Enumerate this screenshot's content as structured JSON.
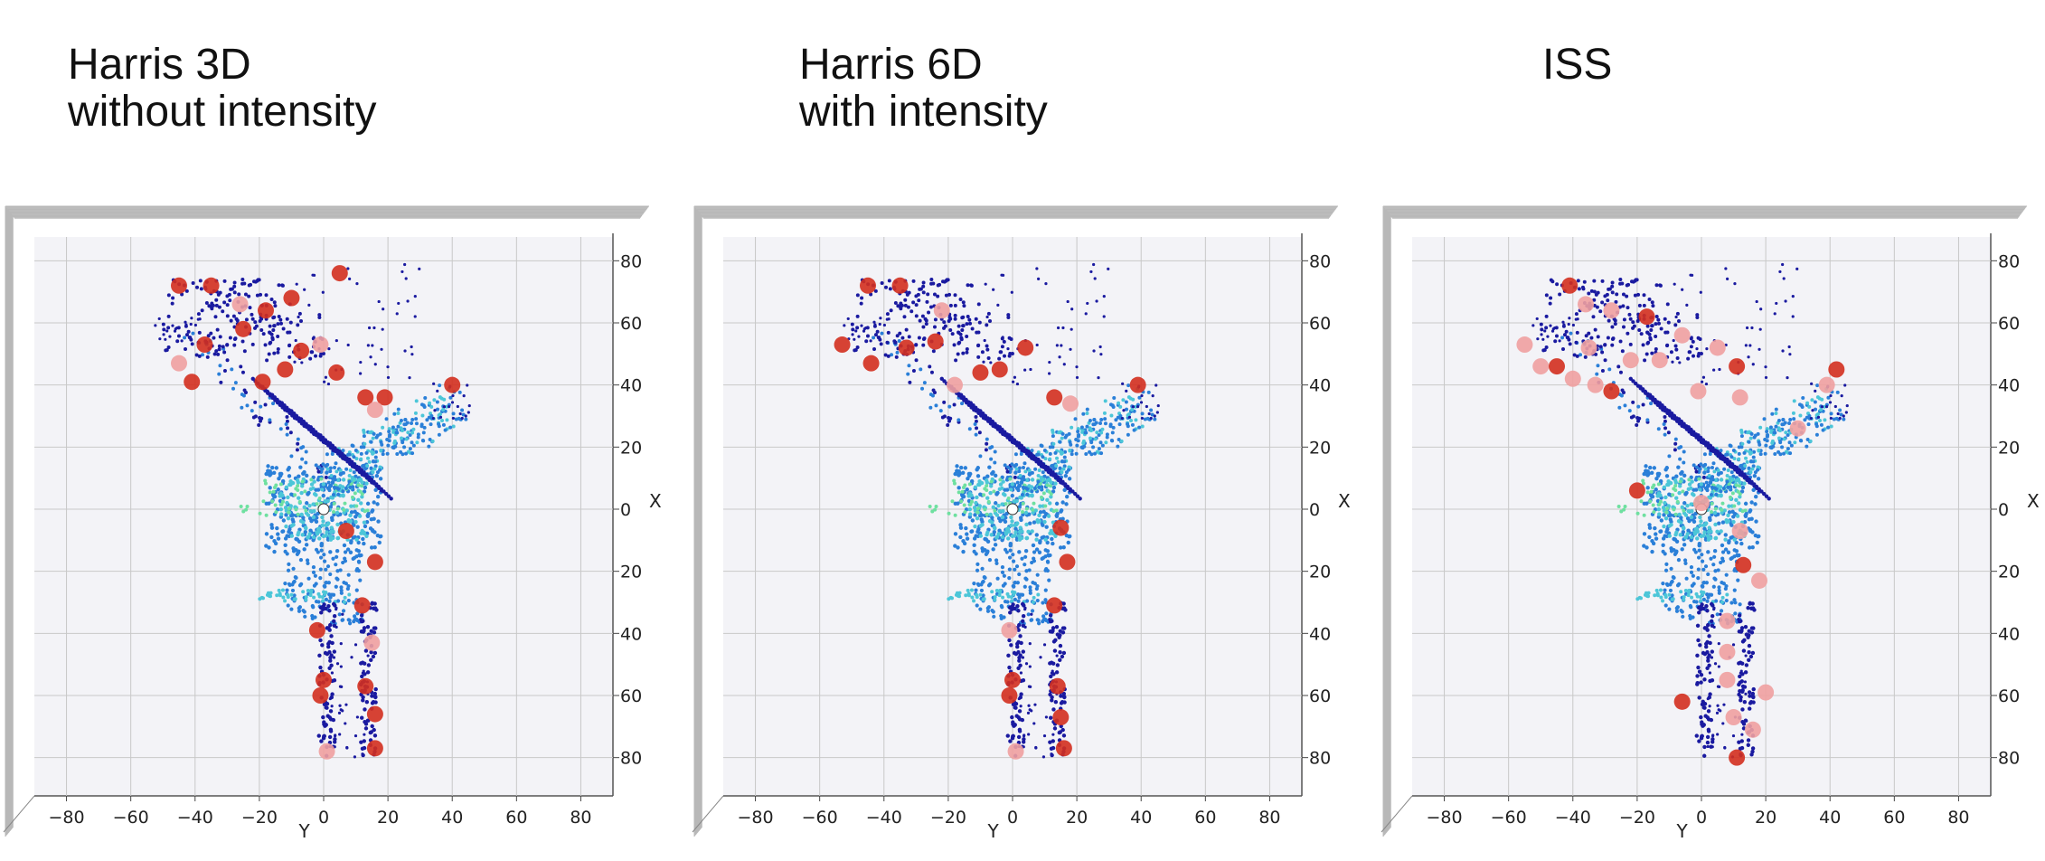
{
  "chart_data": [
    {
      "type": "scatter",
      "title": "Harris 3D\nwithout intensity",
      "title_lines": [
        "Harris 3D",
        "without intensity"
      ],
      "xlabel": "Y",
      "ylabel": "X",
      "xticks": [
        "−80",
        "−60",
        "−40",
        "−20",
        "0",
        "20",
        "40",
        "60",
        "80"
      ],
      "yticks": [
        "80",
        "60",
        "40",
        "20",
        "0",
        "20",
        "40",
        "60",
        "80"
      ],
      "xlim": [
        -90,
        90
      ],
      "ylim": [
        -90,
        90
      ],
      "grid": true,
      "keypoints": [
        {
          "y": -45,
          "x": 72
        },
        {
          "y": -35,
          "x": 72
        },
        {
          "y": -26,
          "x": 66
        },
        {
          "y": -18,
          "x": 64
        },
        {
          "y": -10,
          "x": 68
        },
        {
          "y": -37,
          "x": 53
        },
        {
          "y": -25,
          "x": 58
        },
        {
          "y": -45,
          "x": 47
        },
        {
          "y": -41,
          "x": 41
        },
        {
          "y": -19,
          "x": 41
        },
        {
          "y": -12,
          "x": 45
        },
        {
          "y": -7,
          "x": 51
        },
        {
          "y": -1,
          "x": 53
        },
        {
          "y": 4,
          "x": 44
        },
        {
          "y": 13,
          "x": 36
        },
        {
          "y": 19,
          "x": 36
        },
        {
          "y": 40,
          "x": 40
        },
        {
          "y": 16,
          "x": 32
        },
        {
          "y": 7,
          "x": -7
        },
        {
          "y": 16,
          "x": -17
        },
        {
          "y": 12,
          "x": -31
        },
        {
          "y": -2,
          "x": -39
        },
        {
          "y": 15,
          "x": -43
        },
        {
          "y": 0,
          "x": -55
        },
        {
          "y": -1,
          "x": -60
        },
        {
          "y": 13,
          "x": -57
        },
        {
          "y": 16,
          "x": -66
        },
        {
          "y": 1,
          "x": -78
        },
        {
          "y": 16,
          "x": -77
        },
        {
          "y": 5,
          "x": 76
        }
      ]
    },
    {
      "type": "scatter",
      "title": "Harris 6D\nwith intensity",
      "title_lines": [
        "Harris 6D",
        "with intensity"
      ],
      "xlabel": "Y",
      "ylabel": "X",
      "xticks": [
        "−80",
        "−60",
        "−40",
        "−20",
        "0",
        "20",
        "40",
        "60",
        "80"
      ],
      "yticks": [
        "80",
        "60",
        "40",
        "20",
        "0",
        "20",
        "40",
        "60",
        "80"
      ],
      "xlim": [
        -90,
        90
      ],
      "ylim": [
        -90,
        90
      ],
      "grid": true,
      "keypoints": [
        {
          "y": -45,
          "x": 72
        },
        {
          "y": -35,
          "x": 72
        },
        {
          "y": -22,
          "x": 64
        },
        {
          "y": -53,
          "x": 53
        },
        {
          "y": -44,
          "x": 47
        },
        {
          "y": -33,
          "x": 52
        },
        {
          "y": -24,
          "x": 54
        },
        {
          "y": -18,
          "x": 40
        },
        {
          "y": -10,
          "x": 44
        },
        {
          "y": -4,
          "x": 45
        },
        {
          "y": 4,
          "x": 52
        },
        {
          "y": 13,
          "x": 36
        },
        {
          "y": 18,
          "x": 34
        },
        {
          "y": 39,
          "x": 40
        },
        {
          "y": 15,
          "x": -6
        },
        {
          "y": 17,
          "x": -17
        },
        {
          "y": 13,
          "x": -31
        },
        {
          "y": -1,
          "x": -39
        },
        {
          "y": 0,
          "x": -55
        },
        {
          "y": -1,
          "x": -60
        },
        {
          "y": 14,
          "x": -57
        },
        {
          "y": 15,
          "x": -67
        },
        {
          "y": 1,
          "x": -78
        },
        {
          "y": 16,
          "x": -77
        }
      ]
    },
    {
      "type": "scatter",
      "title": "ISS",
      "title_lines": [
        "ISS"
      ],
      "xlabel": "Y",
      "ylabel": "X",
      "xticks": [
        "−80",
        "−60",
        "−40",
        "−20",
        "0",
        "20",
        "40",
        "60",
        "80"
      ],
      "yticks": [
        "80",
        "60",
        "40",
        "20",
        "0",
        "20",
        "40",
        "60",
        "80"
      ],
      "xlim": [
        -90,
        90
      ],
      "ylim": [
        -90,
        90
      ],
      "grid": true,
      "keypoints": [
        {
          "y": -41,
          "x": 72
        },
        {
          "y": -36,
          "x": 66
        },
        {
          "y": -28,
          "x": 64
        },
        {
          "y": -17,
          "x": 62
        },
        {
          "y": -55,
          "x": 53
        },
        {
          "y": -50,
          "x": 46
        },
        {
          "y": -45,
          "x": 46
        },
        {
          "y": -40,
          "x": 42
        },
        {
          "y": -33,
          "x": 40
        },
        {
          "y": -28,
          "x": 38
        },
        {
          "y": -35,
          "x": 52
        },
        {
          "y": -22,
          "x": 48
        },
        {
          "y": -13,
          "x": 48
        },
        {
          "y": -6,
          "x": 56
        },
        {
          "y": 5,
          "x": 52
        },
        {
          "y": 11,
          "x": 46
        },
        {
          "y": -1,
          "x": 38
        },
        {
          "y": 12,
          "x": 36
        },
        {
          "y": 42,
          "x": 45
        },
        {
          "y": 39,
          "x": 40
        },
        {
          "y": 30,
          "x": 26
        },
        {
          "y": -20,
          "x": 6
        },
        {
          "y": 0,
          "x": 2
        },
        {
          "y": 12,
          "x": -7
        },
        {
          "y": 13,
          "x": -18
        },
        {
          "y": 18,
          "x": -23
        },
        {
          "y": 8,
          "x": -36
        },
        {
          "y": 8,
          "x": -46
        },
        {
          "y": 8,
          "x": -55
        },
        {
          "y": 20,
          "x": -59
        },
        {
          "y": -6,
          "x": -62
        },
        {
          "y": 10,
          "x": -67
        },
        {
          "y": 16,
          "x": -71
        },
        {
          "y": 11,
          "x": -80
        }
      ]
    }
  ],
  "colors": {
    "pane": "#f3f3f7",
    "grid": "#c8c8c8",
    "keypoint_dark": "#d32f1e",
    "keypoint_light": "#f0a0a0",
    "cloud_dark": "#1a1aa0",
    "cloud_mid": "#2a7fd8",
    "cloud_light": "#4cc6d8",
    "cloud_green": "#6ee0a0"
  }
}
